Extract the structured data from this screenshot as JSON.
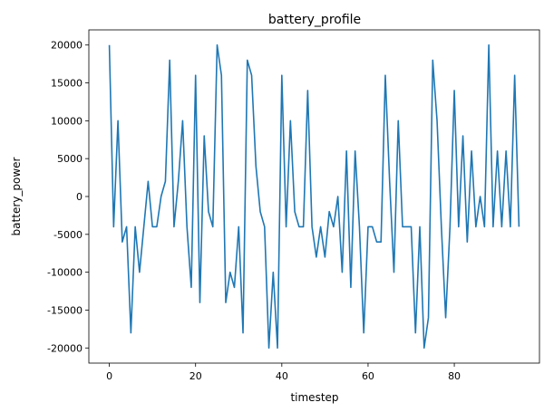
{
  "chart_data": {
    "type": "line",
    "title": "battery_profile",
    "xlabel": "timestep",
    "ylabel": "battery_power",
    "xlim": [
      -4.75,
      99.75
    ],
    "ylim": [
      -22000,
      22000
    ],
    "xticks": [
      0,
      20,
      40,
      60,
      80
    ],
    "yticks": [
      -20000,
      -15000,
      -10000,
      -5000,
      0,
      5000,
      10000,
      15000,
      20000
    ],
    "grid": false,
    "series": [
      {
        "color": "#1f77b4",
        "x": [
          0,
          1,
          2,
          3,
          4,
          5,
          6,
          7,
          8,
          9,
          10,
          11,
          12,
          13,
          14,
          15,
          16,
          17,
          18,
          19,
          20,
          21,
          22,
          23,
          24,
          25,
          26,
          27,
          28,
          29,
          30,
          31,
          32,
          33,
          34,
          35,
          36,
          37,
          38,
          39,
          40,
          41,
          42,
          43,
          44,
          45,
          46,
          47,
          48,
          49,
          50,
          51,
          52,
          53,
          54,
          55,
          56,
          57,
          58,
          59,
          60,
          61,
          62,
          63,
          64,
          65,
          66,
          67,
          68,
          69,
          70,
          71,
          72,
          73,
          74,
          75,
          76,
          77,
          78,
          79,
          80,
          81,
          82,
          83,
          84,
          85,
          86,
          87,
          88,
          89,
          90,
          91,
          92,
          93,
          94,
          95
        ],
        "y": [
          20000,
          -4000,
          10000,
          -6000,
          -4000,
          -18000,
          -4000,
          -10000,
          -4000,
          2000,
          -4000,
          -4000,
          0,
          2000,
          18000,
          -4000,
          2000,
          10000,
          -4000,
          -12000,
          16000,
          -14000,
          8000,
          -2000,
          -4000,
          20000,
          16000,
          -14000,
          -10000,
          -12000,
          -4000,
          -18000,
          18000,
          16000,
          4000,
          -2000,
          -4000,
          -20000,
          -10000,
          -20000,
          16000,
          -4000,
          10000,
          -2000,
          -4000,
          -4000,
          14000,
          -4000,
          -8000,
          -4000,
          -8000,
          -2000,
          -4000,
          0,
          -10000,
          6000,
          -12000,
          6000,
          -4000,
          -18000,
          -4000,
          -4000,
          -6000,
          -6000,
          16000,
          2000,
          -10000,
          10000,
          -4000,
          -4000,
          -4000,
          -18000,
          -4000,
          -20000,
          -16000,
          18000,
          10000,
          -4000,
          -16000,
          -4000,
          14000,
          -4000,
          8000,
          -6000,
          6000,
          -4000,
          0,
          -4000,
          20000,
          -4000,
          6000,
          -4000,
          6000,
          -4000,
          16000,
          -4000
        ]
      }
    ]
  }
}
